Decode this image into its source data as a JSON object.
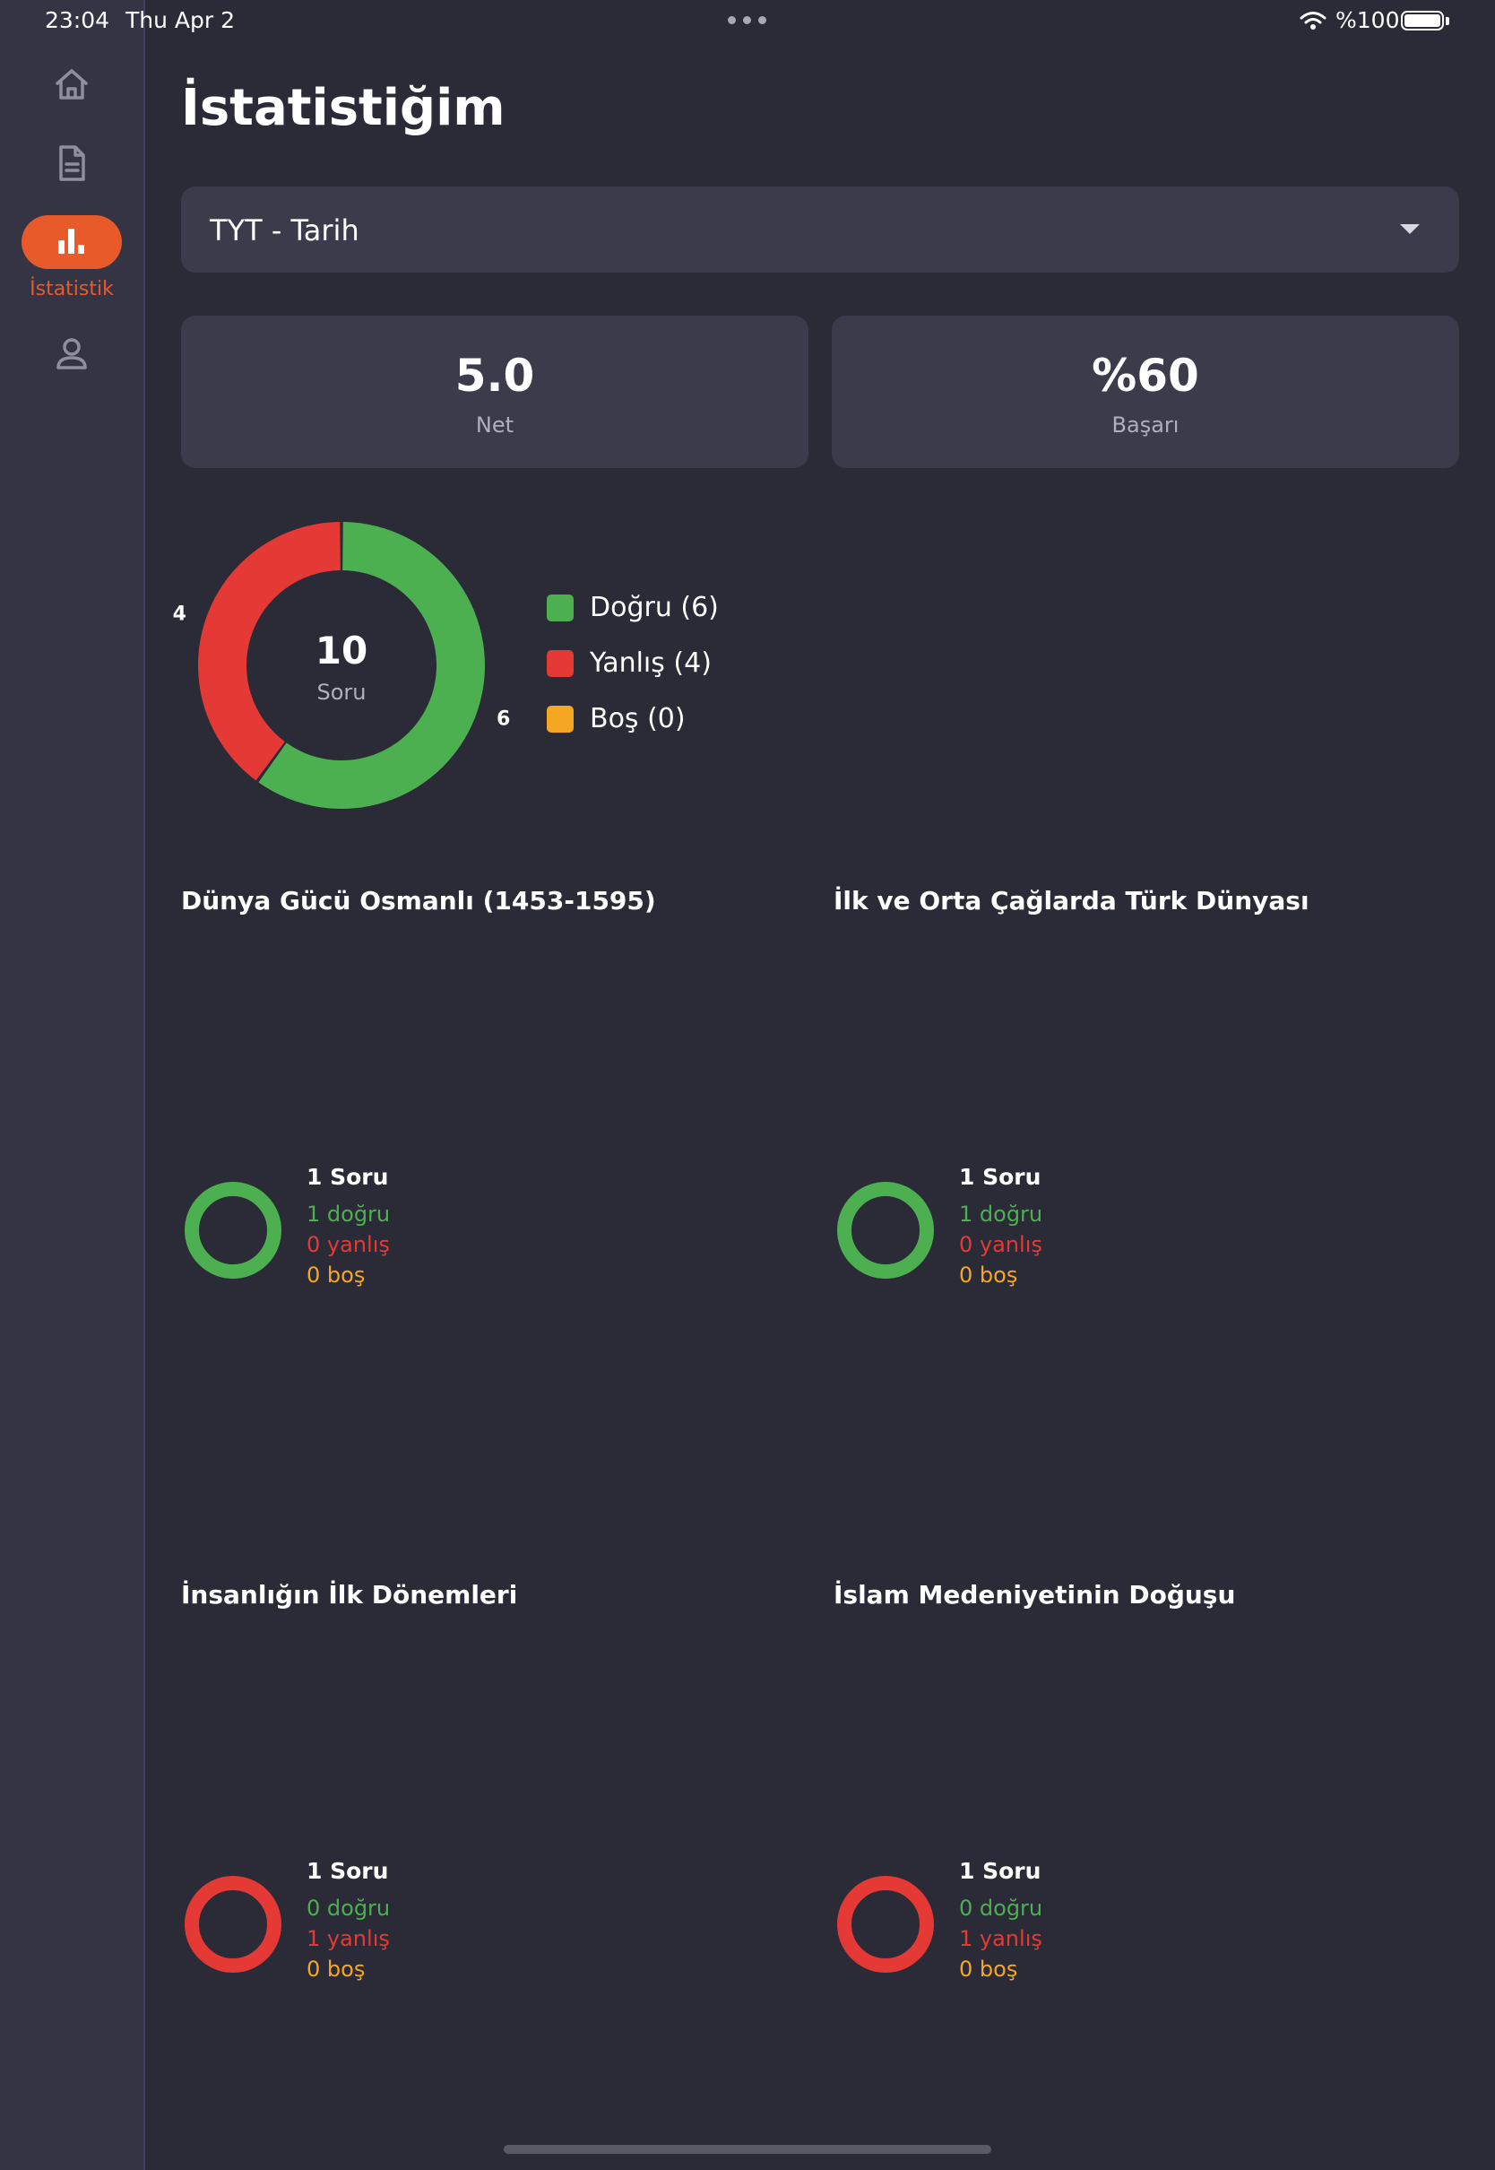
{
  "status_bar": {
    "time": "23:04",
    "date": "Thu Apr 2",
    "battery": "%100"
  },
  "sidebar": {
    "items": [
      {
        "id": "home",
        "icon": "home-icon",
        "active": false
      },
      {
        "id": "document",
        "icon": "document-icon",
        "active": false
      },
      {
        "id": "stats",
        "icon": "bar-chart-icon",
        "active": true,
        "label": "İstatistik"
      },
      {
        "id": "profile",
        "icon": "person-icon",
        "active": false
      }
    ]
  },
  "page": {
    "title": "İstatistiğim"
  },
  "selector": {
    "value": "TYT - Tarih"
  },
  "stats": {
    "net": {
      "value": "5.0",
      "label": "Net"
    },
    "success": {
      "value": "%60",
      "label": "Başarı"
    }
  },
  "colors": {
    "correct": "#4caf50",
    "wrong": "#e53935",
    "empty": "#f5a623",
    "accent": "#e95a2b"
  },
  "chart_data": {
    "type": "pie",
    "center": {
      "value": "10",
      "label": "Soru"
    },
    "slices": [
      {
        "name": "Doğru",
        "value": 6,
        "label": "6",
        "legend": "Doğru (6)",
        "color": "#4caf50"
      },
      {
        "name": "Yanlış",
        "value": 4,
        "label": "4",
        "legend": "Yanlış (4)",
        "color": "#e53935"
      },
      {
        "name": "Boş",
        "value": 0,
        "label": "",
        "legend": "Boş (0)",
        "color": "#f5a623"
      }
    ]
  },
  "topics": [
    {
      "title": "Dünya Gücü Osmanlı (1453-1595)",
      "total": "1 Soru",
      "correct": "1 doğru",
      "wrong": "0 yanlış",
      "empty": "0 boş",
      "correct_n": 1,
      "wrong_n": 0,
      "empty_n": 0
    },
    {
      "title": "İlk ve Orta Çağlarda Türk Dünyası",
      "total": "1 Soru",
      "correct": "1 doğru",
      "wrong": "0 yanlış",
      "empty": "0 boş",
      "correct_n": 1,
      "wrong_n": 0,
      "empty_n": 0
    },
    {
      "title": "İnsanlığın İlk Dönemleri",
      "total": "1 Soru",
      "correct": "0 doğru",
      "wrong": "1 yanlış",
      "empty": "0 boş",
      "correct_n": 0,
      "wrong_n": 1,
      "empty_n": 0
    },
    {
      "title": "İslam Medeniyetinin Doğuşu",
      "total": "1 Soru",
      "correct": "0 doğru",
      "wrong": "1 yanlış",
      "empty": "0 boş",
      "correct_n": 0,
      "wrong_n": 1,
      "empty_n": 0
    }
  ]
}
